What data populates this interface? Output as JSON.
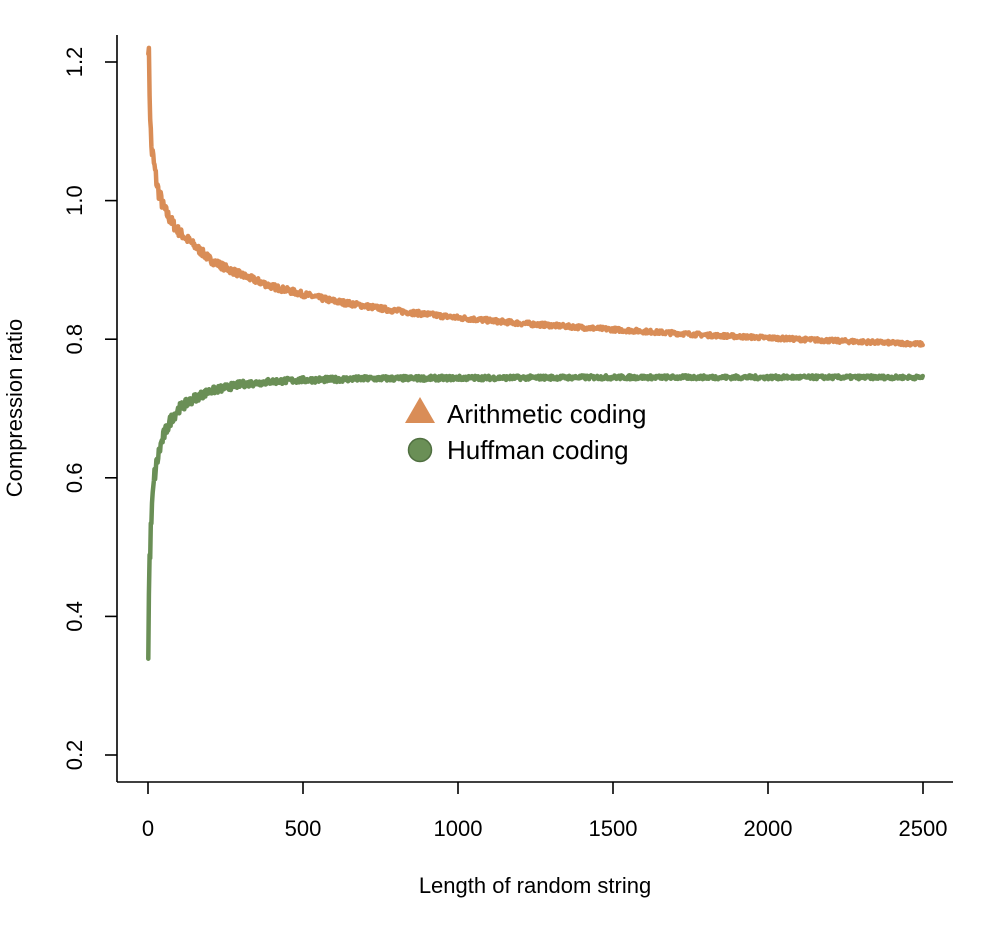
{
  "chart_data": {
    "type": "line",
    "title": "",
    "xlabel": "Length of random string",
    "ylabel": "Compression ratio",
    "xlim": [
      0,
      2500
    ],
    "ylim": [
      0.2,
      1.24
    ],
    "x_ticks": [
      0,
      500,
      1000,
      1500,
      2000,
      2500
    ],
    "y_ticks": [
      0.2,
      0.4,
      0.6,
      0.8,
      1.0,
      1.2
    ],
    "x_tick_labels": [
      "0",
      "500",
      "1000",
      "1500",
      "2000",
      "2500"
    ],
    "y_tick_labels": [
      "0.2",
      "0.4",
      "0.6",
      "0.8",
      "1.0",
      "1.2"
    ],
    "grid": false,
    "legend_position": "center",
    "series": [
      {
        "name": "Arithmetic coding",
        "marker": "triangle",
        "color": "#D98D57",
        "x": [
          1,
          5,
          10,
          20,
          30,
          50,
          75,
          100,
          150,
          200,
          250,
          300,
          400,
          500,
          600,
          700,
          800,
          1000,
          1200,
          1500,
          1800,
          2000,
          2200,
          2500
        ],
        "y": [
          1.24,
          1.16,
          1.08,
          1.05,
          1.02,
          0.99,
          0.97,
          0.955,
          0.935,
          0.915,
          0.903,
          0.893,
          0.876,
          0.865,
          0.855,
          0.848,
          0.841,
          0.831,
          0.823,
          0.814,
          0.806,
          0.802,
          0.798,
          0.793
        ]
      },
      {
        "name": "Huffman coding",
        "marker": "circle",
        "color": "#6A8F56",
        "x": [
          1,
          3,
          5,
          10,
          15,
          20,
          30,
          40,
          50,
          75,
          100,
          150,
          200,
          250,
          300,
          400,
          500,
          700,
          1000,
          1500,
          2000,
          2500
        ],
        "y": [
          0.335,
          0.43,
          0.48,
          0.53,
          0.57,
          0.6,
          0.625,
          0.645,
          0.66,
          0.685,
          0.7,
          0.715,
          0.725,
          0.73,
          0.735,
          0.739,
          0.741,
          0.743,
          0.744,
          0.745,
          0.745,
          0.745
        ]
      }
    ]
  }
}
